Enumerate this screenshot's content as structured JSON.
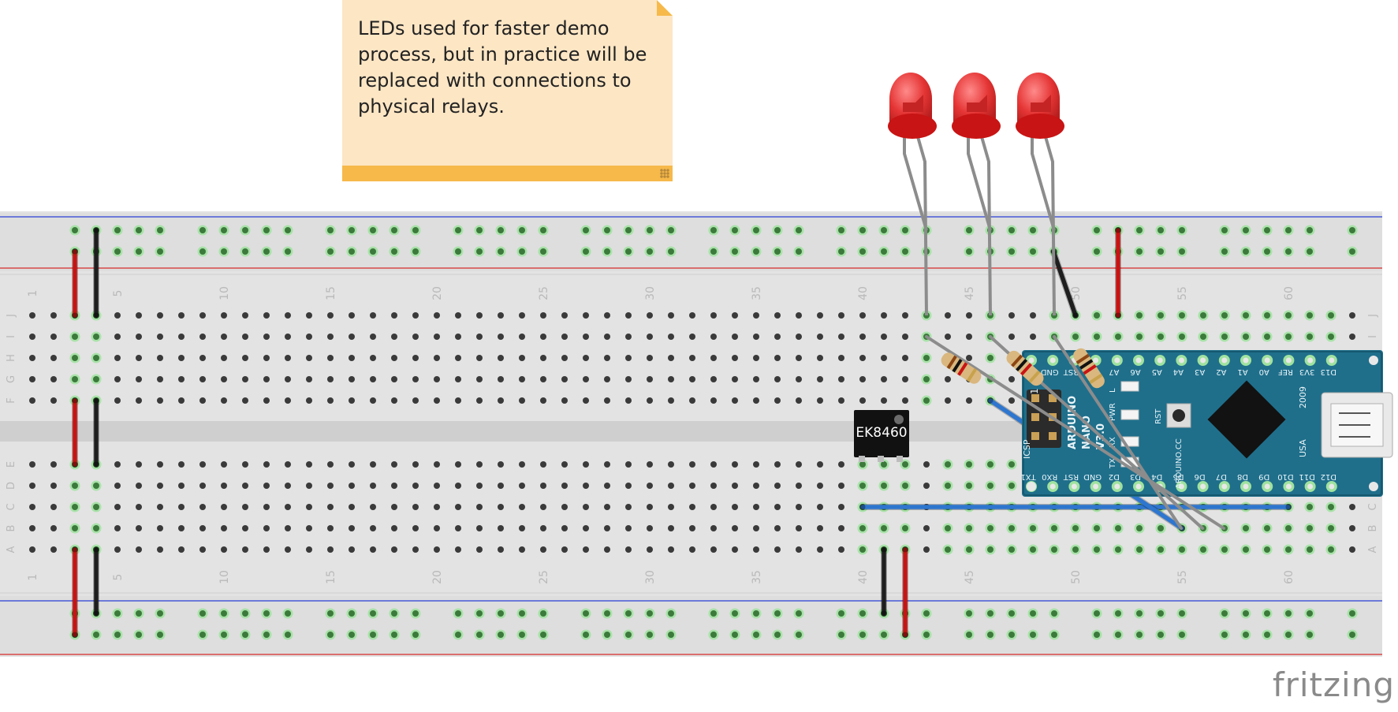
{
  "note": {
    "text": "LEDs used for faster demo\nprocess, but in practice will be\nreplaced with connections to\nphysical relays."
  },
  "breadboard": {
    "row_letters_top": [
      "J",
      "I",
      "H",
      "G",
      "F"
    ],
    "row_letters_bottom": [
      "E",
      "D",
      "C",
      "B",
      "A"
    ],
    "column_numbers": [
      "1",
      "5",
      "10",
      "15",
      "20",
      "25",
      "30",
      "35",
      "40",
      "45",
      "50",
      "55",
      "60"
    ]
  },
  "chip": {
    "label": "EK8460"
  },
  "arduino": {
    "top_pins": [
      "VIN",
      "GND",
      "RST",
      "5V",
      "A7",
      "A6",
      "A5",
      "A4",
      "A3",
      "A2",
      "A1",
      "A0",
      "REF",
      "3V3",
      "D13"
    ],
    "bottom_pins": [
      "TX1",
      "RX0",
      "RST",
      "GND",
      "D2",
      "D3",
      "D4",
      "D5",
      "D6",
      "D7",
      "D8",
      "D9",
      "D10",
      "D11",
      "D12"
    ],
    "board_text": [
      "ARDUINO",
      "NANO",
      "V3.0"
    ],
    "side_labels": [
      "2009",
      "USA"
    ],
    "labels": {
      "icsp": "ICSP",
      "reset": "RST",
      "pin1": "1",
      "l": "L",
      "pwr": "PWR",
      "rx": "RX",
      "tx": "TX",
      "brand": "ARDUINO.CC"
    }
  },
  "leds": {
    "count": 3,
    "color": "#e53535"
  },
  "resistors": {
    "count": 3
  },
  "colors": {
    "wire_red": "#c81414",
    "wire_black": "#1e1e1e",
    "wire_blue": "#2e76cf",
    "led_leg": "#8c8c8c",
    "board_teal": "#1f6f8b",
    "breadboard": "#e3e3e3"
  },
  "brand": {
    "name": "fritzing"
  }
}
